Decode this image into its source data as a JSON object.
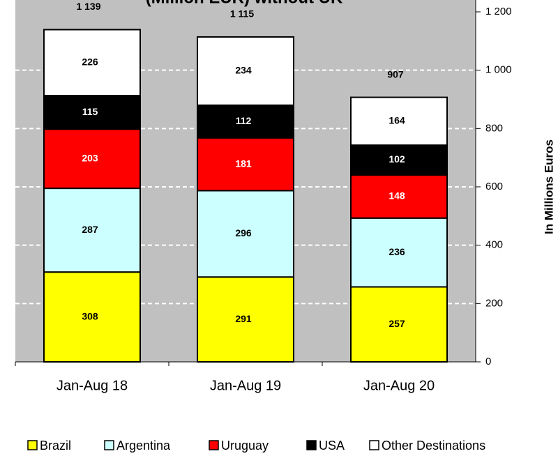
{
  "chart_data": {
    "type": "stacked_bar",
    "title": "(Million EUR) without UK",
    "categories": [
      "Jan-Aug 18",
      "Jan-Aug 19",
      "Jan-Aug 20"
    ],
    "series": [
      {
        "name": "Brazil",
        "color": "#ffff00",
        "values": [
          308,
          291,
          257
        ]
      },
      {
        "name": "Argentina",
        "color": "#ccffff",
        "values": [
          287,
          296,
          236
        ]
      },
      {
        "name": "Uruguay",
        "color": "#ff0000",
        "values": [
          203,
          181,
          148
        ]
      },
      {
        "name": "USA",
        "color": "#000000",
        "values": [
          115,
          112,
          102
        ]
      },
      {
        "name": "Other Destinations",
        "color": "#ffffff",
        "values": [
          226,
          234,
          164
        ]
      }
    ],
    "totals": [
      1139,
      1115,
      907
    ],
    "total_labels": [
      "1 139",
      "1 115",
      "907"
    ],
    "y_axis_label": "In Millions Euros",
    "ylim": [
      0,
      1200
    ],
    "yticks": [
      0,
      200,
      400,
      600,
      800,
      {
        "value": 1000,
        "label": "1 000"
      },
      {
        "value": 1200,
        "label": "1 200"
      }
    ],
    "grid": true,
    "legend": "bottom"
  }
}
